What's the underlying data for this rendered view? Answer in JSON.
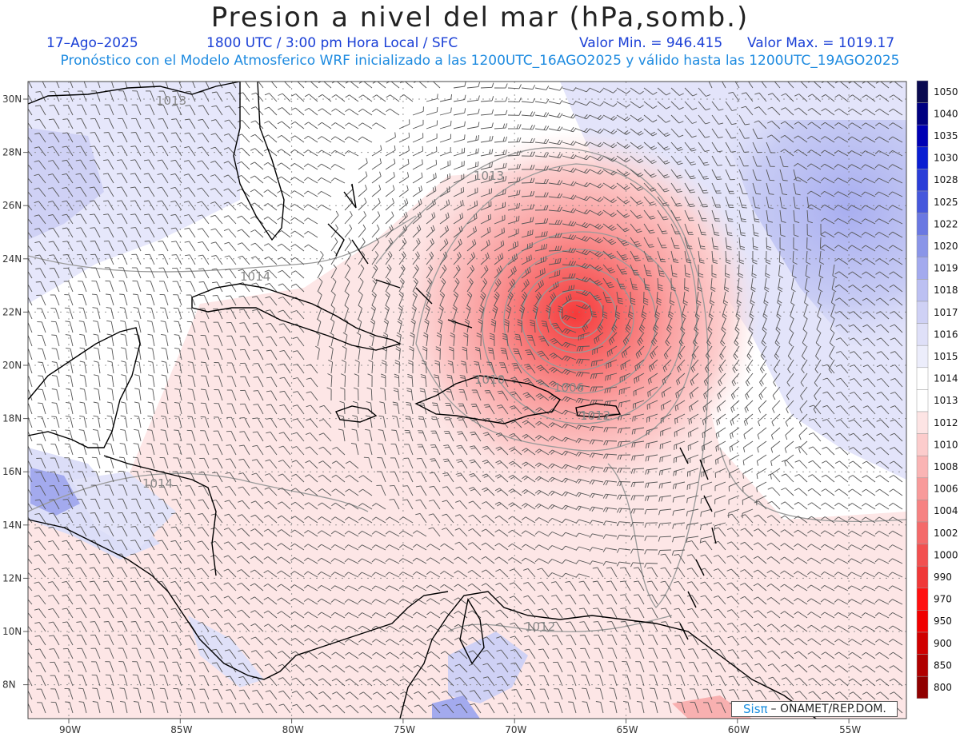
{
  "title": "Presion a nivel del mar (hPa,somb.)",
  "date": "17–Ago–2025",
  "time_info": "1800 UTC / 3:00 pm Hora Local / SFC",
  "min_info": "Valor Min. = 946.415",
  "max_info": "Valor Max. = 1019.17",
  "forecast_info": "Pronóstico con el Modelo Atmosferico WRF inicializado a las 1200UTC_16AGO2025 y válido hasta las  1200UTC_19AGO2025",
  "logo": {
    "brand": "Sisπ",
    "text": "–  ONAMET/REP.DOM."
  },
  "lat_labels": [
    "30N",
    "28N",
    "26N",
    "24N",
    "22N",
    "20N",
    "18N",
    "16N",
    "14N",
    "12N",
    "10N",
    "8N"
  ],
  "lon_labels": [
    "90W",
    "85W",
    "80W",
    "75W",
    "70W",
    "65W",
    "60W",
    "55W"
  ],
  "contour_labels": [
    "1013",
    "1014",
    "1014",
    "1010",
    "1006",
    "1012",
    "1013",
    "1012",
    "1013"
  ],
  "legend": {
    "levels": [
      "1050",
      "1040",
      "1035",
      "1030",
      "1028",
      "1025",
      "1022",
      "1020",
      "1019",
      "1018",
      "1017",
      "1016",
      "1015",
      "1014",
      "1013",
      "1012",
      "1010",
      "1008",
      "1006",
      "1004",
      "1002",
      "1000",
      "990",
      "970",
      "950",
      "900",
      "850",
      "800"
    ],
    "colors": [
      "#0a0a50",
      "#000080",
      "#0000b4",
      "#0a1ed2",
      "#2a3ed8",
      "#4658dc",
      "#6a78e2",
      "#8a95e8",
      "#a3aaee",
      "#bcc0f2",
      "#cfd1f5",
      "#dfe0f8",
      "#ecedfb",
      "#ffffff",
      "#ffffff",
      "#fde4e4",
      "#fccccc",
      "#fab4b4",
      "#f89a9a",
      "#f68282",
      "#f46a6a",
      "#f25050",
      "#f03838",
      "#ff1010",
      "#f00000",
      "#d00000",
      "#b00000",
      "#900000"
    ]
  },
  "colors": {
    "land_outline": "#000000",
    "contour": "#909090",
    "wind_barb": "#555555",
    "grid": "#808080"
  }
}
